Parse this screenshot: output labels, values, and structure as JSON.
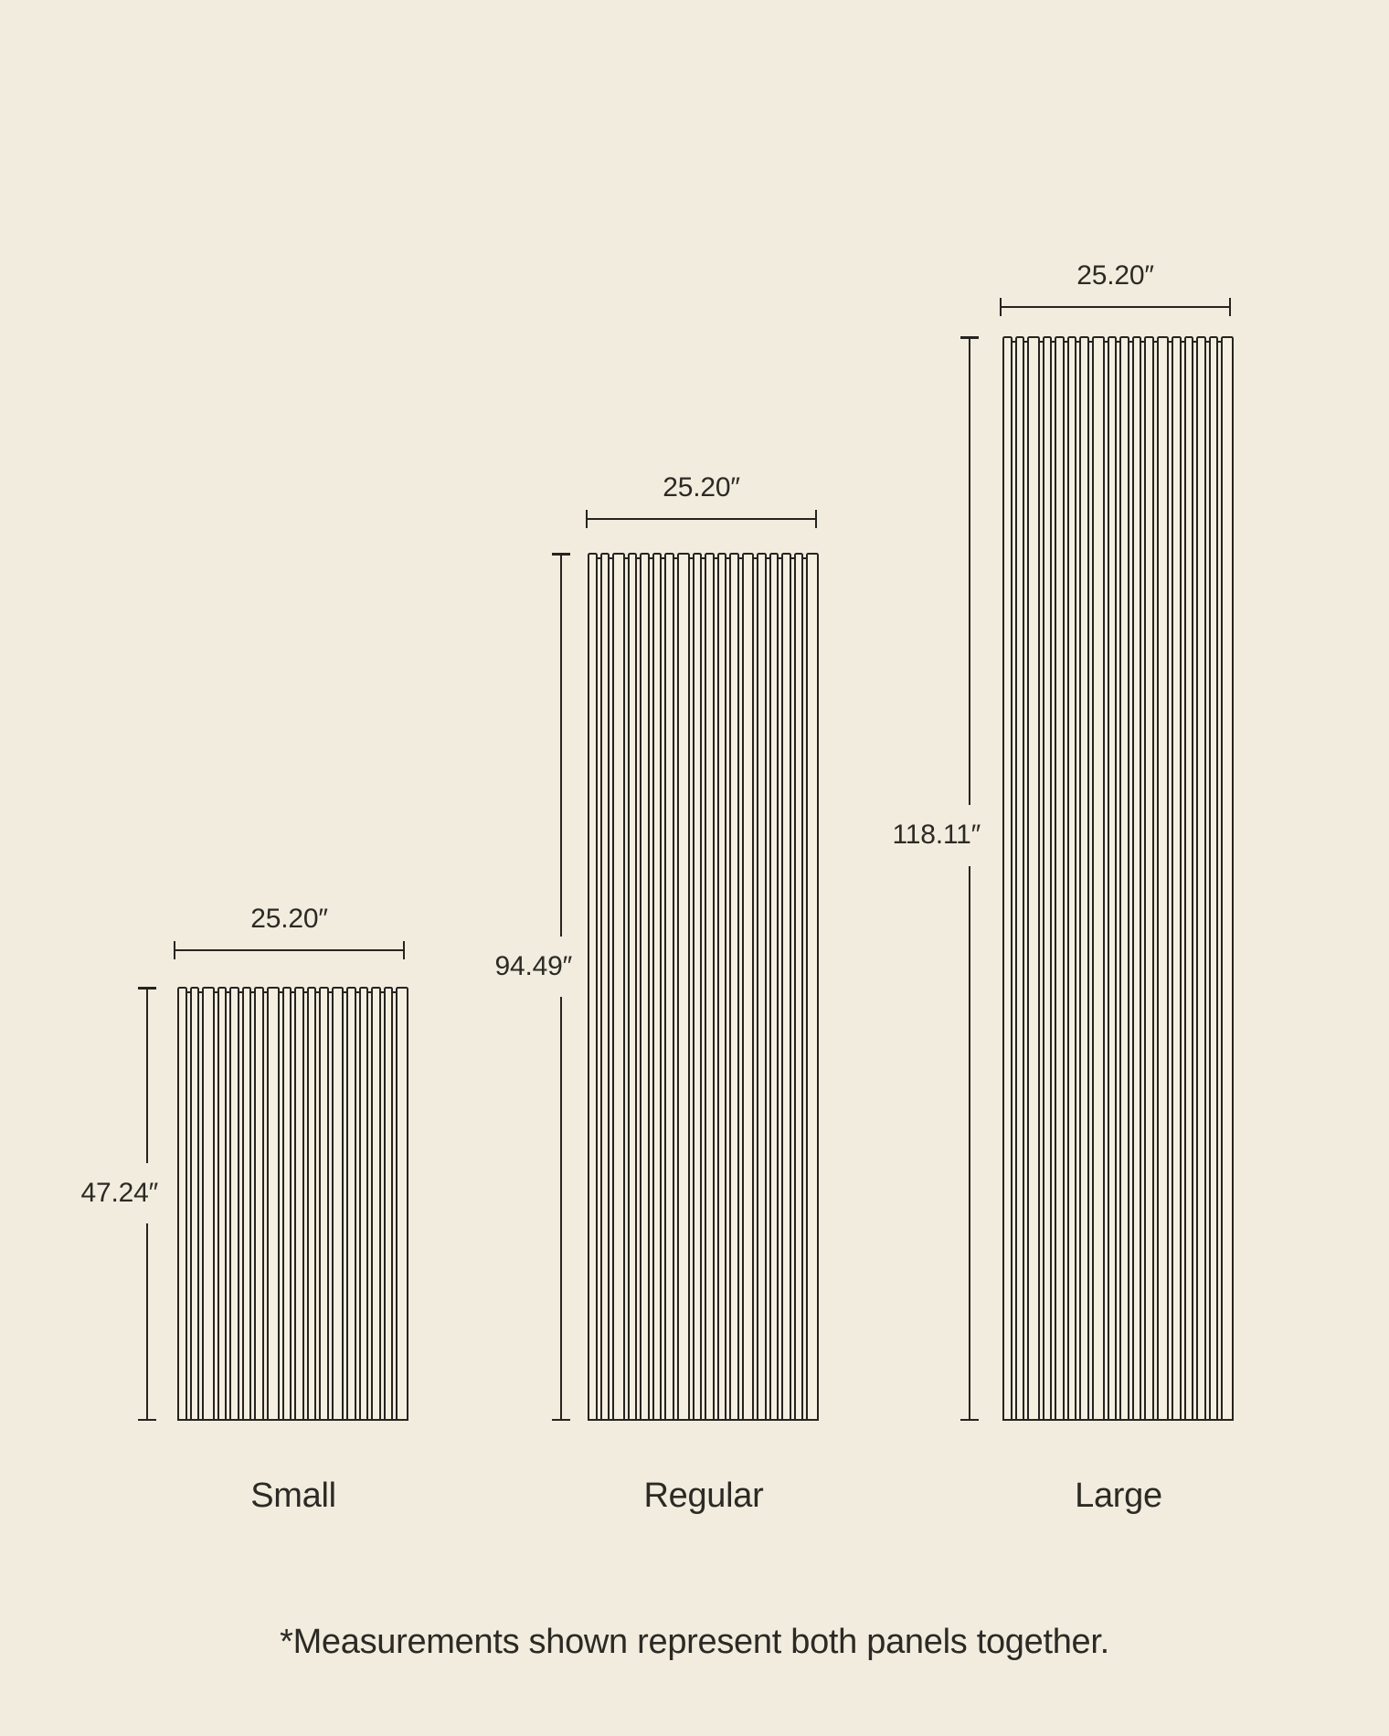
{
  "colors": {
    "background": "#f2ecdf",
    "line": "#262420",
    "text": "#2b2a24",
    "slat_fill": "#f5efe2"
  },
  "slat_count": 18,
  "panels": [
    {
      "id": "small",
      "name": "Small",
      "width_label": "25.20″",
      "height_label": "47.24″",
      "width_inches": 25.2,
      "height_inches": 47.24
    },
    {
      "id": "regular",
      "name": "Regular",
      "width_label": "25.20″",
      "height_label": "94.49″",
      "width_inches": 25.2,
      "height_inches": 94.49
    },
    {
      "id": "large",
      "name": "Large",
      "width_label": "25.20″",
      "height_label": "118.11″",
      "width_inches": 25.2,
      "height_inches": 118.11
    }
  ],
  "footnote": "*Measurements shown represent both panels together."
}
